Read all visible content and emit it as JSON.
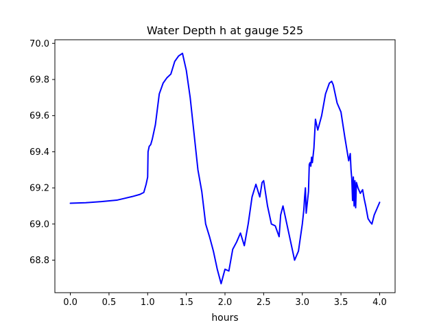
{
  "chart_data": {
    "type": "line",
    "title": "Water Depth h at gauge 525",
    "xlabel": "hours",
    "ylabel": "",
    "xlim": [
      -0.2,
      4.2
    ],
    "ylim": [
      68.62,
      70.02
    ],
    "grid": false,
    "legend": "none",
    "x_ticks": [
      0.0,
      0.5,
      1.0,
      1.5,
      2.0,
      2.5,
      3.0,
      3.5,
      4.0
    ],
    "x_tick_labels": [
      "0.0",
      "0.5",
      "1.0",
      "1.5",
      "2.0",
      "2.5",
      "3.0",
      "3.5",
      "4.0"
    ],
    "y_ticks": [
      68.8,
      69.0,
      69.2,
      69.4,
      69.6,
      69.8,
      70.0
    ],
    "y_tick_labels": [
      "68.8",
      "69.0",
      "69.2",
      "69.4",
      "69.6",
      "69.8",
      "70.0"
    ],
    "series": [
      {
        "color": "#0000ff",
        "x": [
          0.0,
          0.2,
          0.4,
          0.6,
          0.7,
          0.8,
          0.9,
          0.95,
          0.98,
          1.0,
          1.005,
          1.02,
          1.04,
          1.06,
          1.1,
          1.15,
          1.2,
          1.25,
          1.3,
          1.35,
          1.4,
          1.45,
          1.5,
          1.55,
          1.6,
          1.65,
          1.7,
          1.75,
          1.8,
          1.85,
          1.9,
          1.95,
          2.0,
          2.05,
          2.1,
          2.15,
          2.2,
          2.25,
          2.3,
          2.35,
          2.4,
          2.45,
          2.48,
          2.5,
          2.55,
          2.6,
          2.65,
          2.7,
          2.72,
          2.75,
          2.8,
          2.85,
          2.9,
          2.95,
          3.0,
          3.02,
          3.03,
          3.04,
          3.05,
          3.06,
          3.08,
          3.09,
          3.1,
          3.11,
          3.12,
          3.13,
          3.15,
          3.16,
          3.17,
          3.2,
          3.25,
          3.3,
          3.35,
          3.38,
          3.4,
          3.45,
          3.5,
          3.55,
          3.6,
          3.62,
          3.63,
          3.64,
          3.65,
          3.66,
          3.67,
          3.68,
          3.69,
          3.7,
          3.72,
          3.75,
          3.78,
          3.8,
          3.82,
          3.85,
          3.88,
          3.9,
          3.93,
          3.96,
          4.0
        ],
        "y": [
          69.115,
          69.118,
          69.124,
          69.132,
          69.142,
          69.152,
          69.164,
          69.175,
          69.22,
          69.26,
          69.4,
          69.43,
          69.44,
          69.47,
          69.55,
          69.72,
          69.78,
          69.81,
          69.83,
          69.9,
          69.93,
          69.945,
          69.85,
          69.7,
          69.5,
          69.3,
          69.18,
          69.0,
          68.93,
          68.85,
          68.75,
          68.67,
          68.75,
          68.74,
          68.86,
          68.9,
          68.95,
          68.88,
          69.0,
          69.15,
          69.22,
          69.15,
          69.23,
          69.24,
          69.1,
          69.0,
          68.99,
          68.93,
          69.05,
          69.1,
          69.0,
          68.9,
          68.8,
          68.85,
          69.0,
          69.08,
          69.15,
          69.2,
          69.06,
          69.1,
          69.18,
          69.33,
          69.34,
          69.32,
          69.37,
          69.34,
          69.42,
          69.5,
          69.58,
          69.52,
          69.6,
          69.72,
          69.78,
          69.79,
          69.77,
          69.67,
          69.62,
          69.48,
          69.35,
          69.39,
          69.3,
          69.25,
          69.13,
          69.26,
          69.1,
          69.24,
          69.09,
          69.23,
          69.2,
          69.17,
          69.19,
          69.14,
          69.1,
          69.03,
          69.01,
          69.0,
          69.05,
          69.08,
          69.12
        ]
      }
    ]
  }
}
